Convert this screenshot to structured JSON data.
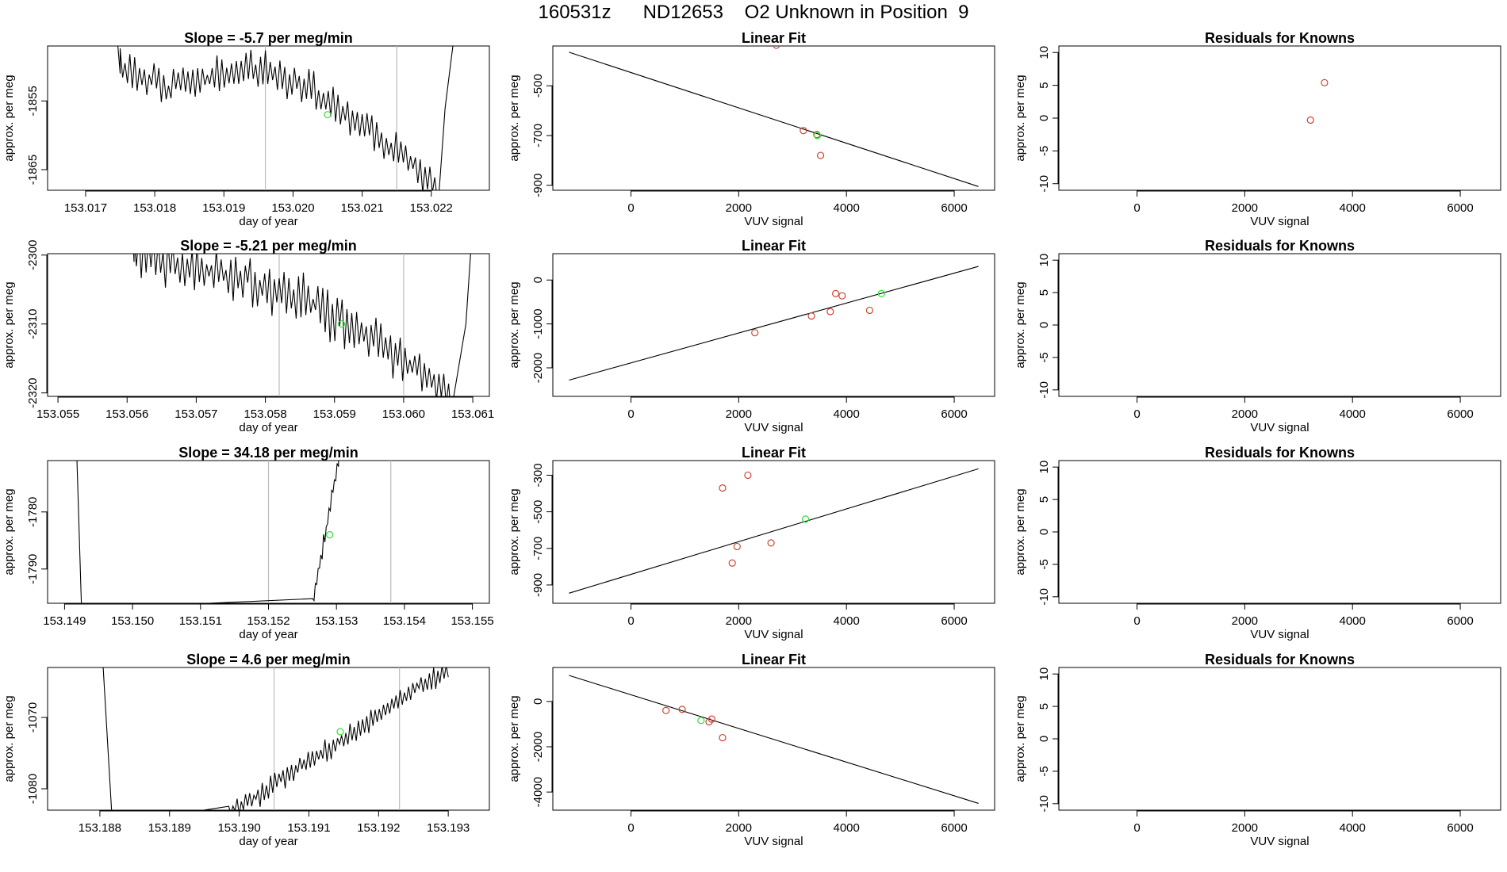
{
  "title": "160531z      ND12653    O2 Unknown in Position  9",
  "colors": {
    "line": "#000000",
    "unknown": "#33dd33",
    "known": "#cc4433",
    "vline": "#bbbbbb"
  },
  "chart_data": [
    {
      "type": "line",
      "row": 0,
      "col": 0,
      "title": "Slope =  -5.7  per meg/min",
      "xlabel": "day of year",
      "ylabel": "approx. per meg",
      "xlim": [
        153.01645,
        153.02284
      ],
      "ylim": [
        -1868,
        -1847
      ],
      "xticks": [
        153.017,
        153.018,
        153.019,
        153.02,
        153.021,
        153.022
      ],
      "xtick_labels": [
        "153.017",
        "153.018",
        "153.019",
        "153.020",
        "153.021",
        "153.022"
      ],
      "yticks": [
        -1855,
        -1865
      ],
      "ytick_labels": [
        "-1855",
        "-1865"
      ],
      "vlines": [
        153.0196,
        153.0215
      ],
      "unknown_point": [
        153.0205,
        -1857
      ],
      "noise": {
        "start": 153.0175,
        "end": 153.0221,
        "step": 3.5e-05,
        "trend": [
          [
            153.0175,
            -1850
          ],
          [
            153.0182,
            -1853
          ],
          [
            153.0194,
            -1850
          ],
          [
            153.0202,
            -1853
          ],
          [
            153.0215,
            -1862
          ],
          [
            153.0221,
            -1868
          ]
        ],
        "amp": 2.5
      },
      "edge_left": [
        [
          153.0174,
          -1839
        ],
        [
          153.0175,
          -1851
        ]
      ],
      "edge_right": [
        [
          153.0221,
          -1870
        ],
        [
          153.0222,
          -1856
        ],
        [
          153.0224,
          -1840
        ]
      ]
    },
    {
      "type": "scatter",
      "row": 0,
      "col": 1,
      "title": "Linear Fit",
      "xlabel": "VUV signal",
      "ylabel": "approx. per meg",
      "xlim": [
        -1450,
        6750
      ],
      "ylim": [
        -920,
        -340
      ],
      "xticks": [
        0,
        2000,
        4000,
        6000
      ],
      "xtick_labels": [
        "0",
        "2000",
        "4000",
        "6000"
      ],
      "yticks": [
        -500,
        -700,
        -900
      ],
      "ytick_labels": [
        "-500",
        "-700",
        "-900"
      ],
      "fit_line": [
        [
          -1150,
          -365
        ],
        [
          6450,
          -905
        ]
      ],
      "known_points": [
        [
          2700,
          -337
        ],
        [
          3200,
          -680
        ],
        [
          3450,
          -696
        ],
        [
          3520,
          -780
        ]
      ],
      "unknown_points": [
        [
          3460,
          -700
        ]
      ]
    },
    {
      "type": "scatter",
      "row": 0,
      "col": 2,
      "title": "Residuals for Knowns",
      "xlabel": "VUV signal",
      "ylabel": "approx. per meg",
      "xlim": [
        -1450,
        6750
      ],
      "ylim": [
        -11,
        11
      ],
      "xticks": [
        0,
        2000,
        4000,
        6000
      ],
      "xtick_labels": [
        "0",
        "2000",
        "4000",
        "6000"
      ],
      "yticks": [
        10,
        5,
        0,
        -5,
        -10
      ],
      "ytick_labels": [
        "10",
        "5",
        "0",
        "-5",
        "-10"
      ],
      "known_points": [
        [
          3480,
          5.4
        ],
        [
          3220,
          -0.3
        ]
      ],
      "unknown_points": []
    },
    {
      "type": "line",
      "row": 1,
      "col": 0,
      "title": "Slope =  -5.21  per meg/min",
      "xlabel": "day of year",
      "ylabel": "approx. per meg",
      "xlim": [
        153.05485,
        153.06124
      ],
      "ylim": [
        -2320.5,
        -2299.8
      ],
      "xticks": [
        153.055,
        153.056,
        153.057,
        153.058,
        153.059,
        153.06,
        153.061
      ],
      "xtick_labels": [
        "153.055",
        "153.056",
        "153.057",
        "153.058",
        "153.059",
        "153.060",
        "153.061"
      ],
      "yticks": [
        -2300,
        -2310,
        -2320
      ],
      "ytick_labels": [
        "-2300",
        "-2310",
        "-2320"
      ],
      "vlines": [
        153.0582,
        153.06
      ],
      "unknown_point": [
        153.0591,
        -2310
      ],
      "noise": {
        "start": 153.0561,
        "end": 153.0607,
        "step": 3.5e-05,
        "trend": [
          [
            153.0561,
            -2300
          ],
          [
            153.0575,
            -2303
          ],
          [
            153.0585,
            -2306
          ],
          [
            153.0595,
            -2312
          ],
          [
            153.0607,
            -2320
          ]
        ],
        "amp": 3.2
      },
      "edge_left": [
        [
          153.05605,
          -2290
        ],
        [
          153.0561,
          -2301
        ]
      ],
      "edge_right": [
        [
          153.0607,
          -2322
        ],
        [
          153.0609,
          -2310
        ],
        [
          153.061,
          -2295
        ]
      ]
    },
    {
      "type": "scatter",
      "row": 1,
      "col": 1,
      "title": "Linear Fit",
      "xlabel": "VUV signal",
      "ylabel": "approx. per meg",
      "xlim": [
        -1450,
        6750
      ],
      "ylim": [
        -2650,
        600
      ],
      "xticks": [
        0,
        2000,
        4000,
        6000
      ],
      "xtick_labels": [
        "0",
        "2000",
        "4000",
        "6000"
      ],
      "yticks": [
        0,
        -1000,
        -2000
      ],
      "ytick_labels": [
        "0",
        "-1000",
        "-2000"
      ],
      "fit_line": [
        [
          -1150,
          -2280
        ],
        [
          6450,
          310
        ]
      ],
      "known_points": [
        [
          2300,
          -1200
        ],
        [
          3350,
          -820
        ],
        [
          3700,
          -720
        ],
        [
          3800,
          -310
        ],
        [
          3920,
          -360
        ],
        [
          4430,
          -690
        ]
      ],
      "unknown_points": [
        [
          4650,
          -310
        ]
      ]
    },
    {
      "type": "scatter",
      "row": 1,
      "col": 2,
      "title": "Residuals for Knowns",
      "xlabel": "VUV signal",
      "ylabel": "approx. per meg",
      "xlim": [
        -1450,
        6750
      ],
      "ylim": [
        -11,
        11
      ],
      "xticks": [
        0,
        2000,
        4000,
        6000
      ],
      "xtick_labels": [
        "0",
        "2000",
        "4000",
        "6000"
      ],
      "yticks": [
        10,
        5,
        0,
        -5,
        -10
      ],
      "ytick_labels": [
        "10",
        "5",
        "0",
        "-5",
        "-10"
      ],
      "known_points": [],
      "unknown_points": []
    },
    {
      "type": "line",
      "row": 2,
      "col": 0,
      "title": "Slope =  34.18  per meg/min",
      "xlabel": "day of year",
      "ylabel": "approx. per meg",
      "xlim": [
        153.14875,
        153.15525
      ],
      "ylim": [
        -1796,
        -1771
      ],
      "xticks": [
        153.149,
        153.15,
        153.151,
        153.152,
        153.153,
        153.154,
        153.155
      ],
      "xtick_labels": [
        "153.149",
        "153.150",
        "153.151",
        "153.152",
        "153.153",
        "153.154",
        "153.155"
      ],
      "yticks": [
        -1780,
        -1790
      ],
      "ytick_labels": [
        "-1780",
        "-1790"
      ],
      "vlines": [
        153.152,
        153.1538
      ],
      "unknown_point": [
        153.1529,
        -1784
      ],
      "noise": {
        "start": 153.15265,
        "end": 153.15303,
        "step": 2e-05,
        "trend": [
          [
            153.15265,
            -1796
          ],
          [
            153.15303,
            -1771
          ]
        ],
        "amp": 1.3
      },
      "edge_left": [
        [
          153.14918,
          -1770
        ],
        [
          153.14925,
          -1797
        ]
      ],
      "edge_right": [
        [
          153.15303,
          -1771
        ],
        [
          153.15305,
          -1769
        ]
      ]
    },
    {
      "type": "scatter",
      "row": 2,
      "col": 1,
      "title": "Linear Fit",
      "xlabel": "VUV signal",
      "ylabel": "approx. per meg",
      "xlim": [
        -1450,
        6750
      ],
      "ylim": [
        -1000,
        -220
      ],
      "xticks": [
        0,
        2000,
        4000,
        6000
      ],
      "xtick_labels": [
        "0",
        "2000",
        "4000",
        "6000"
      ],
      "yticks": [
        -300,
        -500,
        -700,
        -900
      ],
      "ytick_labels": [
        "-300",
        "-500",
        "-700",
        "-900"
      ],
      "fit_line": [
        [
          -1150,
          -945
        ],
        [
          6450,
          -265
        ]
      ],
      "known_points": [
        [
          1700,
          -370
        ],
        [
          2170,
          -300
        ],
        [
          1970,
          -690
        ],
        [
          1880,
          -780
        ],
        [
          2600,
          -670
        ]
      ],
      "unknown_points": [
        [
          3240,
          -540
        ]
      ]
    },
    {
      "type": "scatter",
      "row": 2,
      "col": 2,
      "title": "Residuals for Knowns",
      "xlabel": "VUV signal",
      "ylabel": "approx. per meg",
      "xlim": [
        -1450,
        6750
      ],
      "ylim": [
        -11,
        11
      ],
      "xticks": [
        0,
        2000,
        4000,
        6000
      ],
      "xtick_labels": [
        "0",
        "2000",
        "4000",
        "6000"
      ],
      "yticks": [
        10,
        5,
        0,
        -5,
        -10
      ],
      "ytick_labels": [
        "10",
        "5",
        "0",
        "-5",
        "-10"
      ],
      "known_points": [],
      "unknown_points": []
    },
    {
      "type": "line",
      "row": 3,
      "col": 0,
      "title": "Slope =  4.6  per meg/min",
      "xlabel": "day of year",
      "ylabel": "approx. per meg",
      "xlim": [
        153.18725,
        153.19359
      ],
      "ylim": [
        -1083,
        -1063
      ],
      "xticks": [
        153.188,
        153.189,
        153.19,
        153.191,
        153.192,
        153.193
      ],
      "xtick_labels": [
        "153.188",
        "153.189",
        "153.190",
        "153.191",
        "153.192",
        "153.193"
      ],
      "yticks": [
        -1070,
        -1080
      ],
      "ytick_labels": [
        "-1070",
        "-1080"
      ],
      "vlines": [
        153.1905,
        153.1923
      ],
      "unknown_point": [
        153.19145,
        -1072
      ],
      "noise": {
        "start": 153.18985,
        "end": 153.193,
        "step": 3e-05,
        "trend": [
          [
            153.18985,
            -1083
          ],
          [
            153.1902,
            -1081.5
          ],
          [
            153.1907,
            -1078
          ],
          [
            153.1915,
            -1073
          ],
          [
            153.1925,
            -1066
          ],
          [
            153.193,
            -1063.5
          ]
        ],
        "amp": 1.4
      },
      "edge_left": [
        [
          153.18803,
          -1060
        ],
        [
          153.18818,
          -1085
        ]
      ],
      "edge_right": []
    },
    {
      "type": "scatter",
      "row": 3,
      "col": 1,
      "title": "Linear Fit",
      "xlabel": "VUV signal",
      "ylabel": "approx. per meg",
      "xlim": [
        -1450,
        6750
      ],
      "ylim": [
        -4800,
        1500
      ],
      "xticks": [
        0,
        2000,
        4000,
        6000
      ],
      "xtick_labels": [
        "0",
        "2000",
        "4000",
        "6000"
      ],
      "yticks": [
        0,
        -2000,
        -4000
      ],
      "ytick_labels": [
        "0",
        "-2000",
        "-4000"
      ],
      "fit_line": [
        [
          -1150,
          1150
        ],
        [
          6450,
          -4500
        ]
      ],
      "known_points": [
        [
          650,
          -400
        ],
        [
          950,
          -350
        ],
        [
          1450,
          -900
        ],
        [
          1500,
          -780
        ],
        [
          1700,
          -1600
        ]
      ],
      "unknown_points": [
        [
          1300,
          -840
        ]
      ]
    },
    {
      "type": "scatter",
      "row": 3,
      "col": 2,
      "title": "Residuals for Knowns",
      "xlabel": "VUV signal",
      "ylabel": "approx. per meg",
      "xlim": [
        -1450,
        6750
      ],
      "ylim": [
        -11,
        11
      ],
      "xticks": [
        0,
        2000,
        4000,
        6000
      ],
      "xtick_labels": [
        "0",
        "2000",
        "4000",
        "6000"
      ],
      "yticks": [
        10,
        5,
        0,
        -5,
        -10
      ],
      "ytick_labels": [
        "10",
        "5",
        "0",
        "-5",
        "-10"
      ],
      "known_points": [],
      "unknown_points": []
    }
  ]
}
